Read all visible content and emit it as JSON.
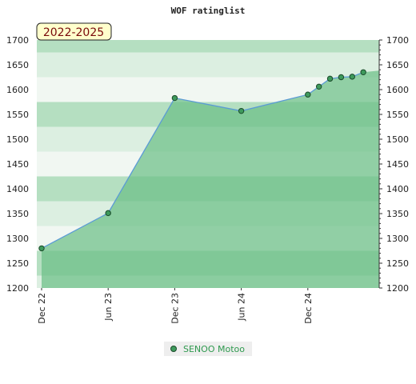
{
  "chart_data": {
    "type": "area",
    "title": "WOF ratinglist",
    "badge": "2022-2025",
    "xlabel": "",
    "ylabel": "",
    "ylim": [
      1200,
      1700
    ],
    "yticks": [
      1200,
      1250,
      1300,
      1350,
      1400,
      1450,
      1500,
      1550,
      1600,
      1650,
      1700
    ],
    "x_tick_labels": [
      "Dec 22",
      "Jun 23",
      "Dec 23",
      "Jun 24",
      "Dec 24"
    ],
    "x_range": [
      "2022-12",
      "2025-06"
    ],
    "series": [
      {
        "name": "SENOO Motoo",
        "x": [
          "2022-12",
          "2023-06",
          "2023-12",
          "2024-06",
          "2024-12",
          "2025-01",
          "2025-02",
          "2025-03",
          "2025-04",
          "2025-05"
        ],
        "values": [
          1280,
          1351,
          1583,
          1557,
          1590,
          1606,
          1622,
          1625,
          1626,
          1635
        ]
      }
    ],
    "grid": true,
    "legend_position": "bottom-center",
    "colors": {
      "area_fill": "#6cbf87",
      "line": "#5b9bd5",
      "marker": "#3e9a5c",
      "band_light": "#f1f7f2",
      "band_mid": "#dcefe1",
      "band_dark": "#b5dfc1",
      "badge_bg": "#ffffcc",
      "badge_text": "#7a0a0a",
      "legend_text": "#2f9a4f"
    }
  }
}
